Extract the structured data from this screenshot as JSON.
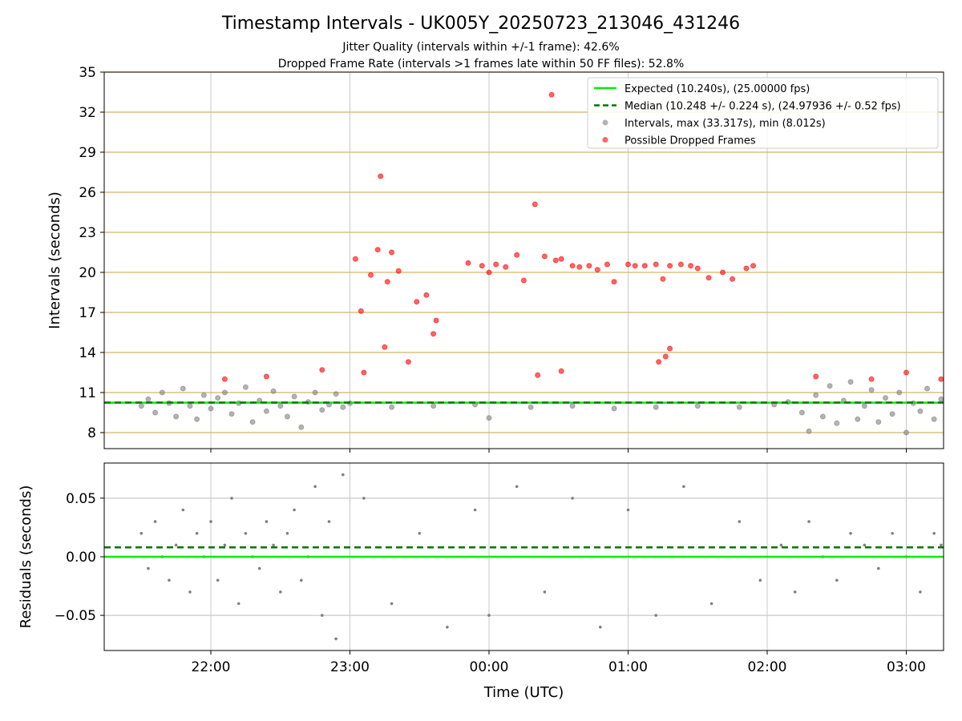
{
  "title": "Timestamp Intervals - UK005Y_20250723_213046_431246",
  "subtitle_1": "Jitter Quality (intervals within +/-1 frame): 42.6%",
  "subtitle_2": "Dropped Frame Rate (intervals >1 frames late within 50 FF files): 52.8%",
  "colors": {
    "expected": "#00ee00",
    "median": "#007700",
    "intervals": "#808080",
    "dropped": "#ff0000",
    "hgrid_top": "#d4b36a",
    "grid": "#c8c8c8"
  },
  "chart_data": [
    {
      "type": "scatter",
      "panel": "intervals",
      "ylabel": "Intervals (seconds)",
      "xlabel": "",
      "x_unit": "hours UTC (22.0 = 22:00, 24.0 = 00:00, 27.0 = 03:00)",
      "xlim": [
        "21:14",
        "03:17"
      ],
      "ylim": [
        6.8,
        35
      ],
      "yticks": [
        8,
        11,
        14,
        17,
        20,
        23,
        26,
        29,
        32,
        35
      ],
      "xticks": [
        "22:00",
        "23:00",
        "00:00",
        "01:00",
        "02:00",
        "03:00"
      ],
      "grid": true,
      "legend_position": "upper right",
      "legend": [
        "Expected (10.240s), (25.00000 fps)",
        "Median (10.248 +/- 0.224 s), (24.97936 +/- 0.52 fps)",
        "Intervals, max (33.317s), min (8.012s)",
        "Possible Dropped Frames"
      ],
      "expected_line": 10.24,
      "median_line": 10.248,
      "series": [
        {
          "name": "Intervals, max (33.317s), min (8.012s)",
          "style": "gray dots",
          "points": [
            [
              21.5,
              10.0
            ],
            [
              21.55,
              10.5
            ],
            [
              21.6,
              9.5
            ],
            [
              21.65,
              11.0
            ],
            [
              21.7,
              10.2
            ],
            [
              21.75,
              9.2
            ],
            [
              21.8,
              11.3
            ],
            [
              21.85,
              10.0
            ],
            [
              21.9,
              9.0
            ],
            [
              21.95,
              10.8
            ],
            [
              22.0,
              9.8
            ],
            [
              22.05,
              10.6
            ],
            [
              22.1,
              11.0
            ],
            [
              22.15,
              9.4
            ],
            [
              22.2,
              10.2
            ],
            [
              22.25,
              11.4
            ],
            [
              22.3,
              8.8
            ],
            [
              22.35,
              10.4
            ],
            [
              22.4,
              9.6
            ],
            [
              22.45,
              11.1
            ],
            [
              22.5,
              10.0
            ],
            [
              22.55,
              9.2
            ],
            [
              22.6,
              10.7
            ],
            [
              22.65,
              8.4
            ],
            [
              22.7,
              10.3
            ],
            [
              22.75,
              11.0
            ],
            [
              22.8,
              9.7
            ],
            [
              22.85,
              10.1
            ],
            [
              22.9,
              10.9
            ],
            [
              22.95,
              9.9
            ],
            [
              23.0,
              10.2
            ],
            [
              23.3,
              9.9
            ],
            [
              23.6,
              10.0
            ],
            [
              23.9,
              10.1
            ],
            [
              24.0,
              9.1
            ],
            [
              24.3,
              9.9
            ],
            [
              24.6,
              10.0
            ],
            [
              24.9,
              9.8
            ],
            [
              25.2,
              9.9
            ],
            [
              25.5,
              10.0
            ],
            [
              25.8,
              9.9
            ],
            [
              26.05,
              10.1
            ],
            [
              26.15,
              10.3
            ],
            [
              26.25,
              9.5
            ],
            [
              26.3,
              8.1
            ],
            [
              26.35,
              10.8
            ],
            [
              26.4,
              9.2
            ],
            [
              26.45,
              11.5
            ],
            [
              26.5,
              8.7
            ],
            [
              26.55,
              10.4
            ],
            [
              26.6,
              11.8
            ],
            [
              26.65,
              9.0
            ],
            [
              26.7,
              10.0
            ],
            [
              26.75,
              11.2
            ],
            [
              26.8,
              8.8
            ],
            [
              26.85,
              10.6
            ],
            [
              26.9,
              9.4
            ],
            [
              26.95,
              11.0
            ],
            [
              27.0,
              8.0
            ],
            [
              27.05,
              10.2
            ],
            [
              27.1,
              9.6
            ],
            [
              27.15,
              11.3
            ],
            [
              27.2,
              9.0
            ],
            [
              27.25,
              10.5
            ]
          ]
        },
        {
          "name": "Possible Dropped Frames",
          "style": "red dots",
          "points": [
            [
              23.04,
              21.0
            ],
            [
              23.08,
              17.1
            ],
            [
              23.15,
              19.8
            ],
            [
              23.2,
              21.7
            ],
            [
              23.22,
              27.2
            ],
            [
              23.25,
              14.4
            ],
            [
              23.27,
              19.3
            ],
            [
              23.3,
              21.5
            ],
            [
              23.35,
              20.1
            ],
            [
              23.42,
              13.3
            ],
            [
              23.48,
              17.8
            ],
            [
              23.55,
              18.3
            ],
            [
              23.6,
              15.4
            ],
            [
              23.62,
              16.4
            ],
            [
              23.85,
              20.7
            ],
            [
              23.95,
              20.5
            ],
            [
              24.0,
              20.0
            ],
            [
              24.05,
              20.6
            ],
            [
              24.12,
              20.4
            ],
            [
              24.2,
              21.3
            ],
            [
              24.25,
              19.4
            ],
            [
              24.33,
              25.1
            ],
            [
              24.4,
              21.2
            ],
            [
              24.45,
              33.3
            ],
            [
              24.48,
              20.9
            ],
            [
              24.52,
              21.0
            ],
            [
              24.6,
              20.5
            ],
            [
              24.65,
              20.4
            ],
            [
              24.72,
              20.5
            ],
            [
              24.78,
              20.2
            ],
            [
              24.85,
              20.6
            ],
            [
              24.9,
              19.3
            ],
            [
              25.0,
              20.6
            ],
            [
              25.05,
              20.5
            ],
            [
              25.12,
              20.5
            ],
            [
              25.2,
              20.6
            ],
            [
              25.25,
              19.5
            ],
            [
              25.3,
              20.5
            ],
            [
              25.38,
              20.6
            ],
            [
              25.45,
              20.5
            ],
            [
              25.5,
              20.3
            ],
            [
              25.58,
              19.6
            ],
            [
              25.68,
              20.0
            ],
            [
              25.75,
              19.5
            ],
            [
              25.85,
              20.3
            ],
            [
              25.9,
              20.5
            ],
            [
              25.22,
              13.3
            ],
            [
              25.27,
              13.7
            ],
            [
              25.3,
              14.3
            ],
            [
              24.35,
              12.3
            ],
            [
              24.52,
              12.6
            ],
            [
              23.1,
              12.5
            ],
            [
              22.1,
              12.0
            ],
            [
              22.4,
              12.2
            ],
            [
              22.8,
              12.7
            ],
            [
              26.35,
              12.2
            ],
            [
              27.0,
              12.5
            ],
            [
              27.25,
              12.0
            ],
            [
              26.75,
              12.0
            ]
          ]
        }
      ]
    },
    {
      "type": "scatter",
      "panel": "residuals",
      "ylabel": "Residuals (seconds)",
      "xlabel": "Time (UTC)",
      "xlim": [
        "21:14",
        "03:17"
      ],
      "ylim": [
        -0.08,
        0.08
      ],
      "yticks": [
        0.05,
        0.0,
        -0.05
      ],
      "ytick_labels": [
        "0.05",
        "0.00",
        "−0.05"
      ],
      "xticks": [
        "22:00",
        "23:00",
        "00:00",
        "01:00",
        "02:00",
        "03:00"
      ],
      "grid": true,
      "expected_line": 0.0,
      "median_line": 0.008,
      "series": [
        {
          "name": "",
          "style": "small gray dots",
          "points": [
            [
              21.5,
              0.02
            ],
            [
              21.55,
              -0.01
            ],
            [
              21.6,
              0.03
            ],
            [
              21.65,
              0.0
            ],
            [
              21.7,
              -0.02
            ],
            [
              21.75,
              0.01
            ],
            [
              21.8,
              0.04
            ],
            [
              21.85,
              -0.03
            ],
            [
              21.9,
              0.02
            ],
            [
              21.95,
              0.0
            ],
            [
              22.0,
              0.03
            ],
            [
              22.05,
              -0.02
            ],
            [
              22.1,
              0.01
            ],
            [
              22.15,
              0.05
            ],
            [
              22.2,
              -0.04
            ],
            [
              22.25,
              0.02
            ],
            [
              22.3,
              0.0
            ],
            [
              22.35,
              -0.01
            ],
            [
              22.4,
              0.03
            ],
            [
              22.45,
              0.01
            ],
            [
              22.5,
              -0.03
            ],
            [
              22.55,
              0.02
            ],
            [
              22.6,
              0.04
            ],
            [
              22.65,
              -0.02
            ],
            [
              22.7,
              0.0
            ],
            [
              22.75,
              0.06
            ],
            [
              22.8,
              -0.05
            ],
            [
              22.85,
              0.03
            ],
            [
              22.9,
              -0.07
            ],
            [
              22.95,
              0.07
            ],
            [
              23.1,
              0.05
            ],
            [
              23.3,
              -0.04
            ],
            [
              23.5,
              0.02
            ],
            [
              23.7,
              -0.06
            ],
            [
              23.9,
              0.04
            ],
            [
              24.0,
              -0.05
            ],
            [
              24.2,
              0.06
            ],
            [
              24.4,
              -0.03
            ],
            [
              24.6,
              0.05
            ],
            [
              24.8,
              -0.06
            ],
            [
              25.0,
              0.04
            ],
            [
              25.2,
              -0.05
            ],
            [
              25.4,
              0.06
            ],
            [
              25.6,
              -0.04
            ],
            [
              25.8,
              0.03
            ],
            [
              25.95,
              -0.02
            ],
            [
              26.1,
              0.01
            ],
            [
              26.2,
              -0.03
            ],
            [
              26.3,
              0.03
            ],
            [
              26.4,
              0.0
            ],
            [
              26.5,
              -0.02
            ],
            [
              26.6,
              0.02
            ],
            [
              26.7,
              0.01
            ],
            [
              26.8,
              -0.01
            ],
            [
              26.9,
              0.02
            ],
            [
              27.0,
              0.0
            ],
            [
              27.1,
              -0.03
            ],
            [
              27.2,
              0.02
            ],
            [
              27.25,
              0.01
            ]
          ]
        }
      ]
    }
  ]
}
